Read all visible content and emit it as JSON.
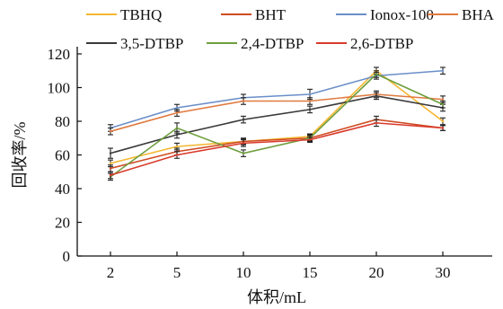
{
  "chart_data": {
    "type": "line",
    "categories": [
      "2",
      "5",
      "10",
      "15",
      "20",
      "30"
    ],
    "xlabel": "体积/mL",
    "ylabel": "回收率/%",
    "ylim": [
      0,
      120
    ],
    "yticks": [
      0,
      20,
      40,
      60,
      80,
      100,
      120
    ],
    "grid": false,
    "legend_position": "top",
    "series": [
      {
        "name": "TBHQ",
        "color": "#f5b731",
        "values": [
          55,
          65,
          68,
          71,
          110,
          80
        ],
        "errors": [
          2,
          2,
          1.5,
          1.5,
          2,
          2
        ]
      },
      {
        "name": "BHT",
        "color": "#cf4b22",
        "values": [
          52,
          62,
          68,
          70,
          81,
          76
        ],
        "errors": [
          2,
          2,
          2,
          1.5,
          2,
          1.5
        ]
      },
      {
        "name": "Ionox-100",
        "color": "#6b8fc9",
        "values": [
          76,
          88,
          94,
          96,
          107,
          110
        ],
        "errors": [
          2,
          2,
          2,
          3,
          2,
          2
        ]
      },
      {
        "name": "BHA",
        "color": "#e07a3f",
        "values": [
          74,
          85,
          92,
          92,
          96,
          93
        ],
        "errors": [
          2,
          2,
          2,
          2,
          2,
          2
        ]
      },
      {
        "name": "3,5-DTBP",
        "color": "#3a3a3a",
        "values": [
          61,
          72,
          81,
          87,
          95,
          88
        ],
        "errors": [
          3,
          2,
          2,
          2,
          2,
          2
        ]
      },
      {
        "name": "2,4-DTBP",
        "color": "#6f9e3e",
        "values": [
          47,
          76,
          61,
          70,
          108,
          90
        ],
        "errors": [
          2,
          3,
          2,
          2,
          2,
          2
        ]
      },
      {
        "name": "2,6-DTBP",
        "color": "#d93a2b",
        "values": [
          48,
          60,
          67,
          69,
          79,
          76
        ],
        "errors": [
          2,
          2,
          2,
          1.5,
          2,
          1.5
        ]
      }
    ]
  }
}
